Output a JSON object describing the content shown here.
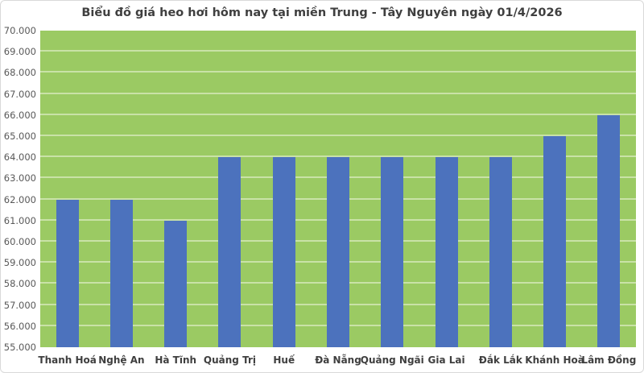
{
  "chart_data": {
    "type": "bar",
    "title": "Biểu đồ giá heo hơi hôm nay tại miền Trung - Tây Nguyên ngày 01/4/2026",
    "categories": [
      "Thanh Hoá",
      "Nghệ An",
      "Hà Tĩnh",
      "Quảng Trị",
      "Huế",
      "Đà Nẵng",
      "Quảng Ngãi",
      "Gia Lai",
      "Đắk Lắk",
      "Khánh Hoà",
      "Lâm Đồng"
    ],
    "values": [
      62000,
      62000,
      61000,
      64000,
      64000,
      64000,
      64000,
      64000,
      64000,
      65000,
      66000
    ],
    "xlabel": "",
    "ylabel": "",
    "ylim": [
      55000,
      70000
    ],
    "yticks": [
      {
        "value": 55000,
        "label": "55.000"
      },
      {
        "value": 56000,
        "label": "56.000"
      },
      {
        "value": 57000,
        "label": "57.000"
      },
      {
        "value": 58000,
        "label": "58.000"
      },
      {
        "value": 59000,
        "label": "59.000"
      },
      {
        "value": 60000,
        "label": "60.000"
      },
      {
        "value": 61000,
        "label": "61.000"
      },
      {
        "value": 62000,
        "label": "62.000"
      },
      {
        "value": 63000,
        "label": "63.000"
      },
      {
        "value": 64000,
        "label": "64.000"
      },
      {
        "value": 65000,
        "label": "65.000"
      },
      {
        "value": 66000,
        "label": "66.000"
      },
      {
        "value": 67000,
        "label": "67.000"
      },
      {
        "value": 68000,
        "label": "68.000"
      },
      {
        "value": 69000,
        "label": "69.000"
      },
      {
        "value": 70000,
        "label": "70.000"
      }
    ],
    "grid": true,
    "legend": false,
    "colors": {
      "bar": "#4C72BD",
      "plot_background": "#9BCA63",
      "gridline": "#C9E2A7",
      "title_text": "#3F3F3F",
      "axis_text": "#595959",
      "category_text": "#3F3F3F",
      "chart_border": "#D9D9D9",
      "background": "#FFFFFF"
    }
  }
}
